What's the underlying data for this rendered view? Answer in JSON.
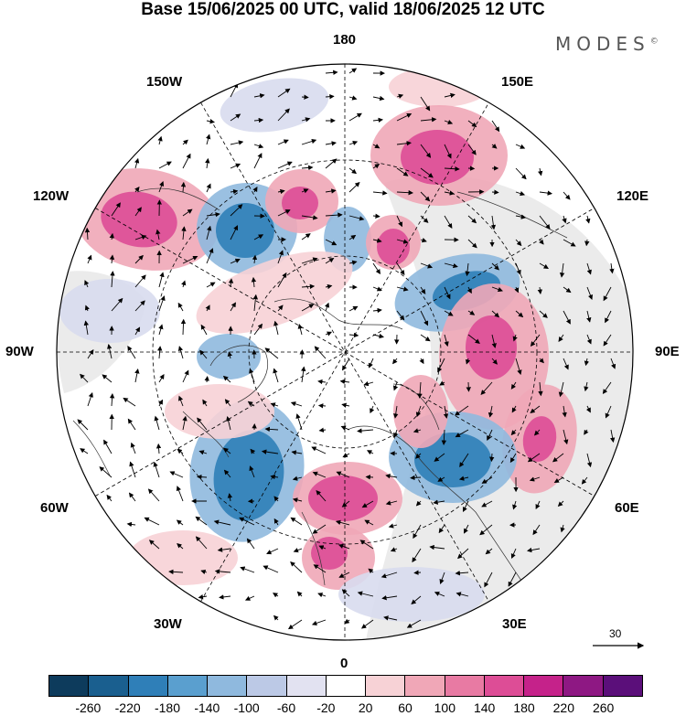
{
  "title": "Base 15/06/2025 00 UTC, valid 18/06/2025 12 UTC",
  "brand": "MODES",
  "brand_mark": "©",
  "longitude_labels": {
    "top": "180",
    "bottom": "0",
    "left": "90W",
    "right": "90E",
    "upper_left_1": "150W",
    "upper_left_2": "120W",
    "upper_right_1": "150E",
    "upper_right_2": "120E",
    "lower_left_1": "60W",
    "lower_left_2": "30W",
    "lower_right_1": "60E",
    "lower_right_2": "30E"
  },
  "reference_vector_label": "30",
  "colorbar": {
    "colors": [
      "#0d3b5c",
      "#1a5f8f",
      "#2f7fb8",
      "#5a9fcf",
      "#8fb9de",
      "#bcc9e6",
      "#e2e2f1",
      "#ffffff",
      "#f7d2d6",
      "#f0a7b7",
      "#e87aa3",
      "#dd4d96",
      "#c5228a",
      "#8e1883",
      "#5b0f7a"
    ],
    "labels": [
      "-260",
      "-220",
      "-180",
      "-140",
      "-100",
      "-60",
      "-20",
      "20",
      "60",
      "100",
      "140",
      "180",
      "220",
      "260"
    ]
  },
  "anomaly_colors": {
    "strong_negative": "#2f7fb8",
    "negative": "#8fb9de",
    "weak_negative": "#d8dcee",
    "weak_positive": "#f7d2d6",
    "positive": "#f0a7b7",
    "strong_positive": "#dd4d96",
    "land_background": "#ebebeb"
  }
}
